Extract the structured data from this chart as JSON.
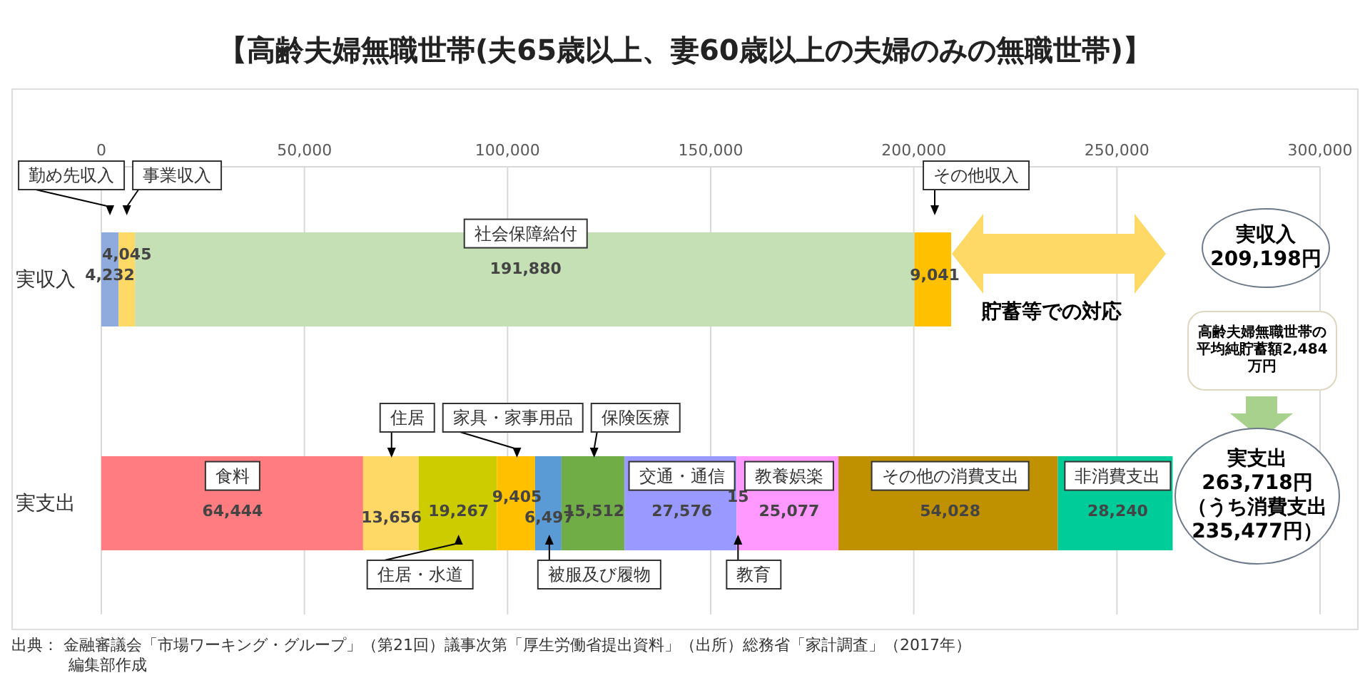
{
  "chart_data": {
    "type": "bar",
    "orientation": "horizontal",
    "stacked": true,
    "title": "【高齢夫婦無職世帯(夫65歳以上、妻60歳以上の夫婦のみの無職世帯)】",
    "categories": [
      "実収入",
      "実支出"
    ],
    "series": [
      {
        "name": "勤め先収入",
        "color": "#8faadc",
        "values": [
          4232,
          null
        ],
        "value_labels": [
          "4,232",
          null
        ]
      },
      {
        "name": "事業収入",
        "color": "#ffd966",
        "values": [
          4045,
          null
        ],
        "value_labels": [
          "4,045",
          null
        ]
      },
      {
        "name": "社会保障給付",
        "color": "#c5e0b4",
        "values": [
          191880,
          null
        ],
        "value_labels": [
          "191,880",
          null
        ]
      },
      {
        "name": "その他収入",
        "color": "#ffc000",
        "values": [
          9041,
          null
        ],
        "value_labels": [
          "9,041",
          null
        ]
      },
      {
        "name": "食料",
        "color": "#ff7c80",
        "values": [
          null,
          64444
        ],
        "value_labels": [
          null,
          "64,444"
        ]
      },
      {
        "name": "住居",
        "color": "#ffd966",
        "values": [
          null,
          13656
        ],
        "value_labels": [
          null,
          "13,656"
        ]
      },
      {
        "name": "住居・水道",
        "color": "#cccc00",
        "values": [
          null,
          19267
        ],
        "value_labels": [
          null,
          "19,267"
        ]
      },
      {
        "name": "家具・家事用品",
        "color": "#ffc000",
        "values": [
          null,
          9405
        ],
        "value_labels": [
          null,
          "9,405"
        ]
      },
      {
        "name": "被服及び履物",
        "color": "#5b9bd5",
        "values": [
          null,
          6497
        ],
        "value_labels": [
          null,
          "6,497"
        ]
      },
      {
        "name": "保険医療",
        "color": "#70ad47",
        "values": [
          null,
          15512
        ],
        "value_labels": [
          null,
          "15,512"
        ]
      },
      {
        "name": "交通・通信",
        "color": "#9999ff",
        "values": [
          null,
          27576
        ],
        "value_labels": [
          null,
          "27,576"
        ]
      },
      {
        "name": "教育",
        "color": "#9999ff",
        "values": [
          null,
          15
        ],
        "value_labels": [
          null,
          "15"
        ]
      },
      {
        "name": "教養娯楽",
        "color": "#ff99ff",
        "values": [
          null,
          25077
        ],
        "value_labels": [
          null,
          "25,077"
        ]
      },
      {
        "name": "その他の消費支出",
        "color": "#bf9000",
        "values": [
          null,
          54028
        ],
        "value_labels": [
          null,
          "54,028"
        ]
      },
      {
        "name": "非消費支出",
        "color": "#00cc99",
        "values": [
          null,
          28240
        ],
        "value_labels": [
          null,
          "28,240"
        ]
      }
    ],
    "xlim": [
      0,
      300000
    ],
    "xticks": [
      0,
      {
        "value": 50000,
        "label": "50,000"
      },
      {
        "value": 100000,
        "label": "100,000"
      },
      {
        "value": 150000,
        "label": "150,000"
      },
      {
        "value": 200000,
        "label": "200,000"
      },
      {
        "value": 250000,
        "label": "250,000"
      },
      {
        "value": 300000,
        "label": "300,000"
      }
    ],
    "grid": "x",
    "legend": false,
    "annotations": [
      "実収入209,198円",
      "貯蓄等での対応",
      "高齢夫婦無職世帯の平均純貯蓄額2,484万円",
      "実支出263,718円（うち消費支出235,477円）",
      "出典：  金融審議会「市場ワーキング・グループ」（第21回）議事次第「厚生労働省提出資料」（出所）総務省「家計調査」（2017年）",
      "編集部作成"
    ]
  }
}
